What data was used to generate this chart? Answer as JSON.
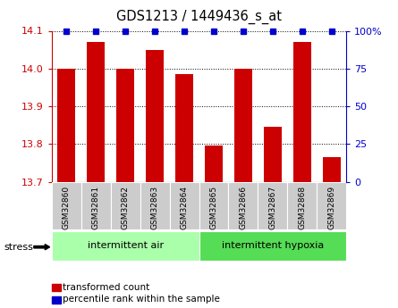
{
  "title": "GDS1213 / 1449436_s_at",
  "samples": [
    "GSM32860",
    "GSM32861",
    "GSM32862",
    "GSM32863",
    "GSM32864",
    "GSM32865",
    "GSM32866",
    "GSM32867",
    "GSM32868",
    "GSM32869"
  ],
  "bar_values": [
    14.0,
    14.07,
    14.0,
    14.05,
    13.985,
    13.795,
    14.0,
    13.845,
    14.07,
    13.765
  ],
  "percentile_values": [
    100,
    100,
    100,
    100,
    100,
    100,
    100,
    100,
    100,
    100
  ],
  "bar_color": "#cc0000",
  "percentile_color": "#0000cc",
  "ylim_left": [
    13.7,
    14.1
  ],
  "ylim_right": [
    0,
    100
  ],
  "yticks_left": [
    13.7,
    13.8,
    13.9,
    14.0,
    14.1
  ],
  "yticks_right": [
    0,
    25,
    50,
    75,
    100
  ],
  "ytick_labels_right": [
    "0",
    "25",
    "50",
    "75",
    "100%"
  ],
  "groups": [
    {
      "label": "intermittent air",
      "start": 0,
      "end": 5,
      "color": "#aaffaa"
    },
    {
      "label": "intermittent hypoxia",
      "start": 5,
      "end": 10,
      "color": "#55dd55"
    }
  ],
  "stress_label": "stress",
  "legend_tc_label": "transformed count",
  "legend_pr_label": "percentile rank within the sample",
  "bar_width": 0.6,
  "background_color": "#ffffff"
}
